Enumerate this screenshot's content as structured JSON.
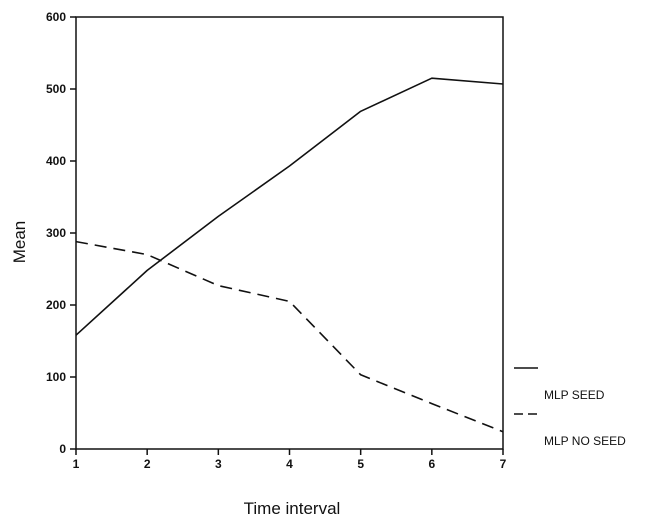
{
  "chart_data": {
    "type": "line",
    "title": "",
    "xlabel": "Time interval",
    "ylabel": "Mean",
    "x": [
      1,
      2,
      3,
      4,
      5,
      6,
      7
    ],
    "xlim": [
      1,
      7
    ],
    "ylim": [
      0,
      600
    ],
    "x_ticks": [
      "1",
      "2",
      "3",
      "4",
      "5",
      "6",
      "7"
    ],
    "y_ticks": [
      "0",
      "100",
      "200",
      "300",
      "400",
      "500",
      "600"
    ],
    "grid": false,
    "legend_placement": "bottom-right, outside plot",
    "series": [
      {
        "name": "MLP SEED",
        "style": "solid",
        "color": "#111111",
        "values": [
          158,
          248,
          323,
          393,
          469,
          515,
          507
        ]
      },
      {
        "name": "MLP NO SEED",
        "style": "dashed",
        "color": "#111111",
        "values": [
          288,
          270,
          227,
          205,
          103,
          63,
          24
        ]
      }
    ]
  }
}
